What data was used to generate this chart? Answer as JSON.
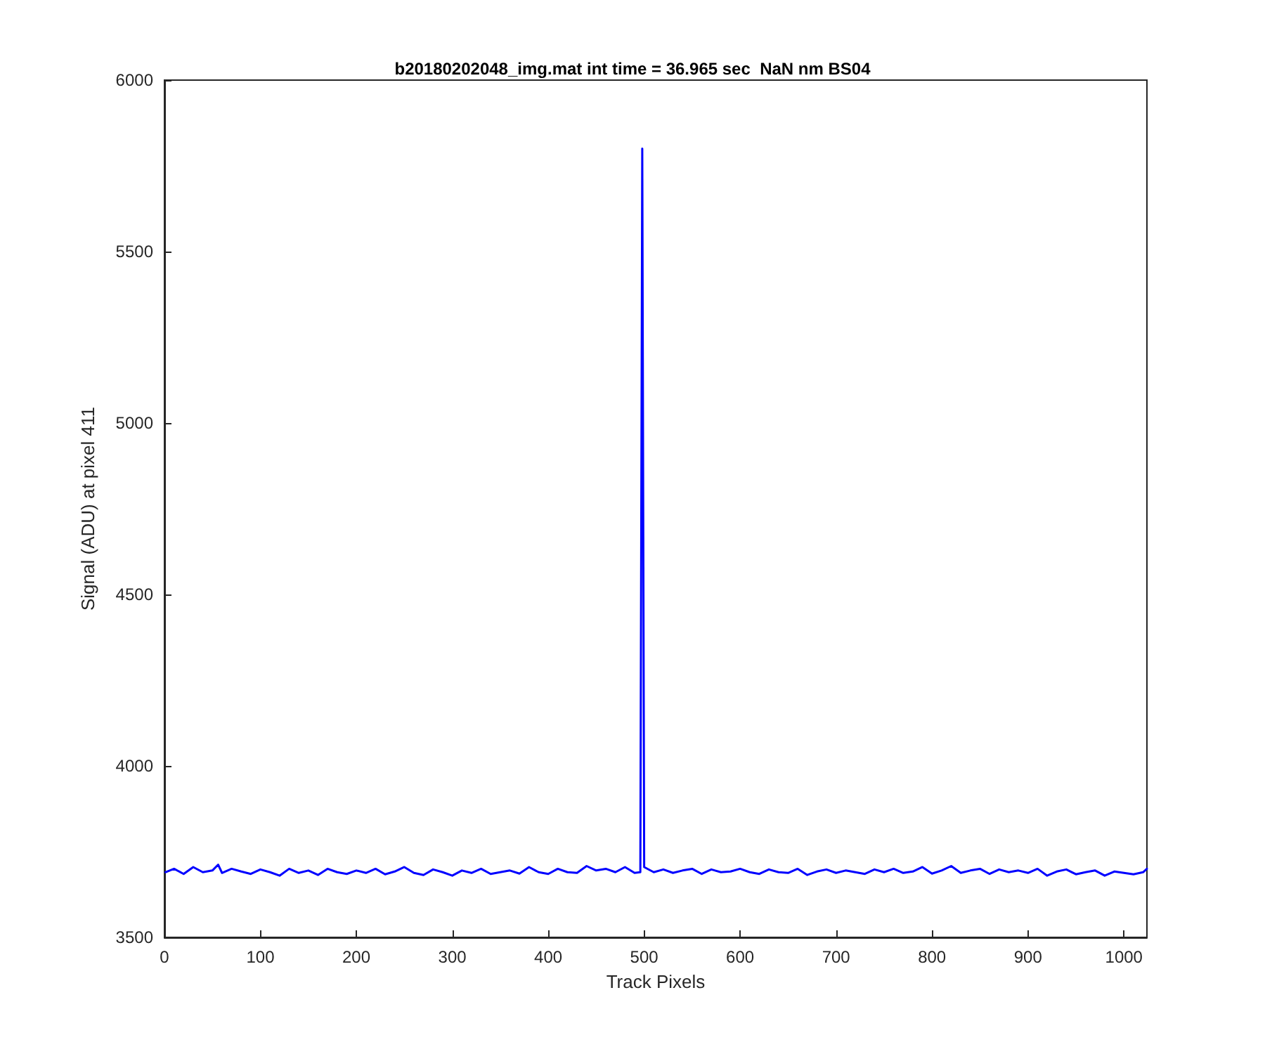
{
  "chart_data": {
    "type": "line",
    "title": "b20180202048_img.mat int time = 36.965 sec  NaN nm BS04",
    "xlabel": "Track Pixels",
    "ylabel": "Signal (ADU) at pixel 411",
    "x": [
      1,
      10,
      20,
      30,
      40,
      50,
      56,
      60,
      70,
      80,
      90,
      100,
      110,
      120,
      130,
      140,
      150,
      160,
      170,
      180,
      190,
      200,
      210,
      220,
      230,
      240,
      250,
      260,
      270,
      280,
      290,
      300,
      310,
      320,
      330,
      340,
      350,
      360,
      370,
      380,
      390,
      400,
      410,
      420,
      430,
      440,
      450,
      460,
      470,
      480,
      490,
      496,
      498,
      500,
      510,
      520,
      530,
      540,
      550,
      560,
      570,
      580,
      590,
      600,
      610,
      620,
      630,
      640,
      650,
      660,
      670,
      680,
      690,
      700,
      710,
      720,
      730,
      740,
      750,
      760,
      770,
      780,
      790,
      800,
      810,
      820,
      830,
      840,
      850,
      860,
      870,
      880,
      890,
      900,
      910,
      920,
      930,
      940,
      950,
      960,
      970,
      980,
      990,
      1000,
      1010,
      1020,
      1024
    ],
    "series": [
      {
        "color": "#0000ff",
        "values": [
          3690,
          3700,
          3685,
          3705,
          3690,
          3695,
          3712,
          3688,
          3700,
          3692,
          3685,
          3698,
          3690,
          3680,
          3700,
          3688,
          3695,
          3682,
          3700,
          3690,
          3685,
          3695,
          3688,
          3700,
          3684,
          3692,
          3705,
          3688,
          3682,
          3698,
          3690,
          3680,
          3695,
          3688,
          3700,
          3685,
          3690,
          3695,
          3686,
          3705,
          3690,
          3685,
          3700,
          3690,
          3688,
          3708,
          3695,
          3700,
          3690,
          3705,
          3688,
          3690,
          5800,
          3705,
          3690,
          3698,
          3688,
          3695,
          3700,
          3685,
          3698,
          3690,
          3692,
          3700,
          3690,
          3685,
          3698,
          3690,
          3688,
          3700,
          3682,
          3692,
          3698,
          3688,
          3695,
          3690,
          3685,
          3698,
          3690,
          3700,
          3688,
          3692,
          3705,
          3686,
          3695,
          3708,
          3688,
          3695,
          3700,
          3685,
          3698,
          3690,
          3695,
          3688,
          3700,
          3680,
          3692,
          3698,
          3684,
          3690,
          3695,
          3680,
          3692,
          3688,
          3684,
          3690,
          3700
        ]
      }
    ],
    "xlim": [
      0,
      1024
    ],
    "xticks": [
      0,
      100,
      200,
      300,
      400,
      500,
      600,
      700,
      800,
      900,
      1000
    ],
    "ylim": [
      3500,
      6000
    ],
    "yticks": [
      3500,
      4000,
      4500,
      5000,
      5500,
      6000
    ],
    "grid": false,
    "marker": "none",
    "line_style": "solid"
  }
}
